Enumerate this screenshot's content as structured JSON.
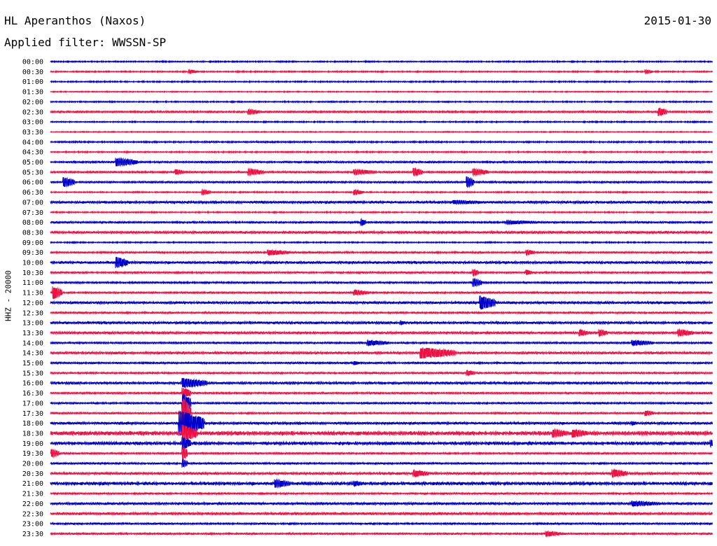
{
  "header": {
    "station": "HL Aperanthos (Naxos)",
    "date": "2015-01-30",
    "filter": "Applied filter: WWSSN-SP"
  },
  "chart_data": {
    "type": "line",
    "ylabel": "HHZ - 20000",
    "colors": [
      "#0000cc",
      "#ee1144"
    ],
    "rows": [
      "00:00",
      "00:30",
      "01:00",
      "01:30",
      "02:00",
      "02:30",
      "03:00",
      "03:30",
      "04:00",
      "04:30",
      "05:00",
      "05:30",
      "06:00",
      "06:30",
      "07:00",
      "07:30",
      "08:00",
      "08:30",
      "09:00",
      "09:30",
      "10:00",
      "10:30",
      "11:00",
      "11:30",
      "12:00",
      "12:30",
      "13:00",
      "13:30",
      "14:00",
      "14:30",
      "15:00",
      "15:30",
      "16:00",
      "16:30",
      "17:00",
      "17:30",
      "18:00",
      "18:30",
      "19:00",
      "19:30",
      "20:00",
      "20:30",
      "21:00",
      "21:30",
      "22:00",
      "22:30",
      "23:00",
      "23:30"
    ],
    "noise": [
      1,
      1,
      1,
      0.8,
      1,
      1.5,
      1,
      0.8,
      1.2,
      1,
      1.5,
      1.5,
      1.5,
      1,
      2,
      1,
      1.5,
      2,
      1,
      1.5,
      2,
      1.5,
      1.5,
      1.5,
      2,
      1.5,
      2,
      2,
      1.5,
      2,
      1.5,
      1.5,
      2,
      1.5,
      1.5,
      1.5,
      2,
      3,
      2.5,
      1.5,
      1.5,
      2,
      2.5,
      1.5,
      2,
      2,
      1.5,
      1.5
    ],
    "events": [
      {
        "row": 1,
        "pos": 0.21,
        "amp": 3,
        "dur": 0.01
      },
      {
        "row": 1,
        "pos": 0.9,
        "amp": 3,
        "dur": 0.008
      },
      {
        "row": 5,
        "pos": 0.3,
        "amp": 4,
        "dur": 0.015
      },
      {
        "row": 5,
        "pos": 0.92,
        "amp": 6,
        "dur": 0.01
      },
      {
        "row": 10,
        "pos": 0.1,
        "amp": 6,
        "dur": 0.03
      },
      {
        "row": 11,
        "pos": 0.19,
        "amp": 4,
        "dur": 0.01
      },
      {
        "row": 11,
        "pos": 0.3,
        "amp": 5,
        "dur": 0.02
      },
      {
        "row": 11,
        "pos": 0.46,
        "amp": 4,
        "dur": 0.03
      },
      {
        "row": 11,
        "pos": 0.55,
        "amp": 6,
        "dur": 0.01
      },
      {
        "row": 11,
        "pos": 0.64,
        "amp": 5,
        "dur": 0.02
      },
      {
        "row": 12,
        "pos": 0.02,
        "amp": 7,
        "dur": 0.015
      },
      {
        "row": 12,
        "pos": 0.63,
        "amp": 8,
        "dur": 0.008
      },
      {
        "row": 13,
        "pos": 0.23,
        "amp": 4,
        "dur": 0.01
      },
      {
        "row": 13,
        "pos": 0.46,
        "amp": 4,
        "dur": 0.01
      },
      {
        "row": 14,
        "pos": 0.61,
        "amp": 3,
        "dur": 0.05
      },
      {
        "row": 16,
        "pos": 0.47,
        "amp": 5,
        "dur": 0.005
      },
      {
        "row": 16,
        "pos": 0.69,
        "amp": 3,
        "dur": 0.05
      },
      {
        "row": 19,
        "pos": 0.33,
        "amp": 4,
        "dur": 0.03
      },
      {
        "row": 19,
        "pos": 0.72,
        "amp": 4,
        "dur": 0.01
      },
      {
        "row": 20,
        "pos": 0.1,
        "amp": 8,
        "dur": 0.015
      },
      {
        "row": 21,
        "pos": 0.64,
        "amp": 5,
        "dur": 0.005
      },
      {
        "row": 21,
        "pos": 0.72,
        "amp": 4,
        "dur": 0.005
      },
      {
        "row": 22,
        "pos": 0.64,
        "amp": 6,
        "dur": 0.01
      },
      {
        "row": 23,
        "pos": 0.005,
        "amp": 9,
        "dur": 0.01
      },
      {
        "row": 23,
        "pos": 0.46,
        "amp": 4,
        "dur": 0.02
      },
      {
        "row": 24,
        "pos": 0.65,
        "amp": 10,
        "dur": 0.02
      },
      {
        "row": 26,
        "pos": 0.53,
        "amp": 3,
        "dur": 0.005
      },
      {
        "row": 27,
        "pos": 0.8,
        "amp": 5,
        "dur": 0.01
      },
      {
        "row": 27,
        "pos": 0.83,
        "amp": 5,
        "dur": 0.01
      },
      {
        "row": 27,
        "pos": 0.95,
        "amp": 5,
        "dur": 0.02
      },
      {
        "row": 28,
        "pos": 0.48,
        "amp": 4,
        "dur": 0.03
      },
      {
        "row": 28,
        "pos": 0.88,
        "amp": 4,
        "dur": 0.03
      },
      {
        "row": 29,
        "pos": 0.56,
        "amp": 8,
        "dur": 0.05
      },
      {
        "row": 30,
        "pos": 0.46,
        "amp": 3,
        "dur": 0.005
      },
      {
        "row": 31,
        "pos": 0.63,
        "amp": 4,
        "dur": 0.01
      },
      {
        "row": 32,
        "pos": 0.2,
        "amp": 7,
        "dur": 0.035
      },
      {
        "row": 33,
        "pos": 0.2,
        "amp": 8,
        "dur": 0.01
      },
      {
        "row": 34,
        "pos": 0.2,
        "amp": 14,
        "dur": 0.01
      },
      {
        "row": 35,
        "pos": 0.2,
        "amp": 22,
        "dur": 0.01
      },
      {
        "row": 35,
        "pos": 0.9,
        "amp": 4,
        "dur": 0.01
      },
      {
        "row": 36,
        "pos": 0.195,
        "amp": 18,
        "dur": 0.035
      },
      {
        "row": 36,
        "pos": 0.88,
        "amp": 3,
        "dur": 0.005
      },
      {
        "row": 37,
        "pos": 0.2,
        "amp": 12,
        "dur": 0.02
      },
      {
        "row": 37,
        "pos": 0.76,
        "amp": 6,
        "dur": 0.02
      },
      {
        "row": 37,
        "pos": 0.79,
        "amp": 6,
        "dur": 0.02
      },
      {
        "row": 38,
        "pos": 0.2,
        "amp": 9,
        "dur": 0.01
      },
      {
        "row": 38,
        "pos": 0.998,
        "amp": 5,
        "dur": 0.005
      },
      {
        "row": 39,
        "pos": 0.2,
        "amp": 10,
        "dur": 0.005
      },
      {
        "row": 39,
        "pos": 0.003,
        "amp": 6,
        "dur": 0.008
      },
      {
        "row": 40,
        "pos": 0.2,
        "amp": 6,
        "dur": 0.005
      },
      {
        "row": 41,
        "pos": 0.55,
        "amp": 5,
        "dur": 0.02
      },
      {
        "row": 41,
        "pos": 0.85,
        "amp": 6,
        "dur": 0.02
      },
      {
        "row": 42,
        "pos": 0.34,
        "amp": 6,
        "dur": 0.02
      },
      {
        "row": 42,
        "pos": 0.46,
        "amp": 4,
        "dur": 0.01
      },
      {
        "row": 44,
        "pos": 0.88,
        "amp": 4,
        "dur": 0.04
      },
      {
        "row": 47,
        "pos": 0.75,
        "amp": 4,
        "dur": 0.02
      }
    ]
  }
}
